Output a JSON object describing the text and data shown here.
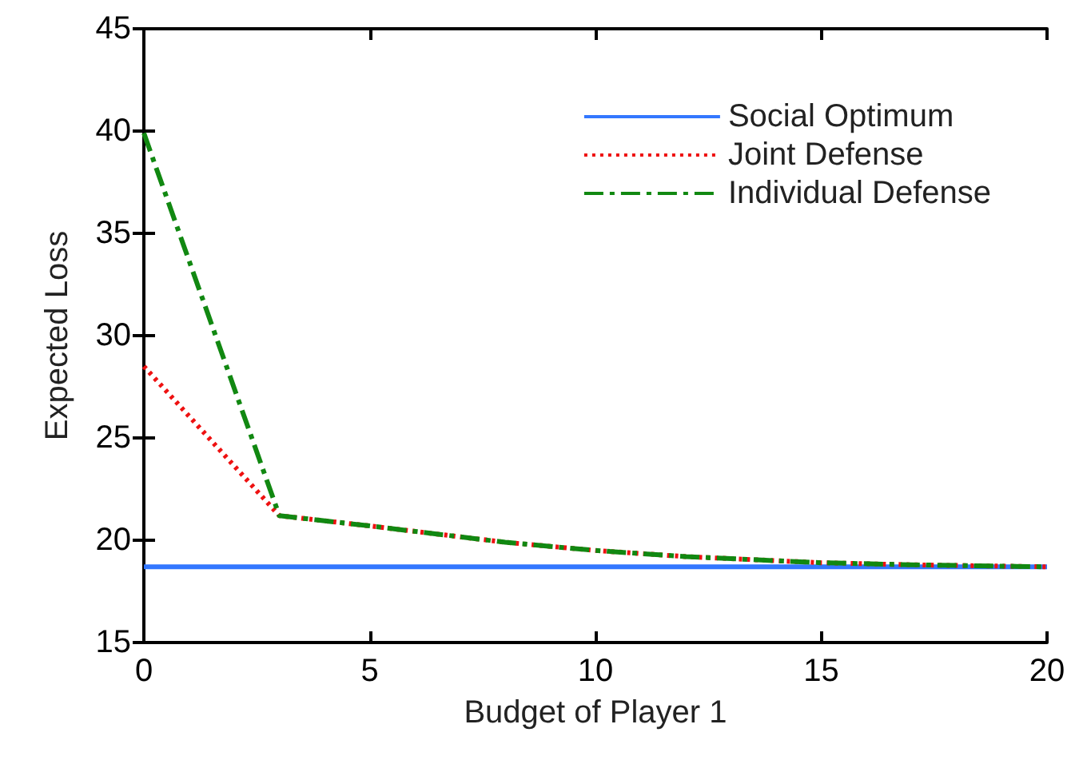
{
  "chart_data": {
    "type": "line",
    "xlabel": "Budget of Player 1",
    "ylabel": "Expected Loss",
    "x": [
      0,
      3,
      5,
      8,
      10,
      12,
      15,
      17,
      20
    ],
    "series": [
      {
        "name": "Social Optimum",
        "color": "#3377ff",
        "line_style": "solid",
        "values": [
          18.7,
          18.7,
          18.7,
          18.7,
          18.7,
          18.7,
          18.7,
          18.7,
          18.7
        ]
      },
      {
        "name": "Joint Defense",
        "color": "#ee1111",
        "line_style": "dotted",
        "values": [
          28.5,
          21.2,
          20.7,
          19.9,
          19.5,
          19.2,
          18.9,
          18.8,
          18.7
        ]
      },
      {
        "name": "Individual Defense",
        "color": "#118811",
        "line_style": "dashed",
        "values": [
          39.9,
          21.2,
          20.7,
          19.9,
          19.5,
          19.2,
          18.9,
          18.8,
          18.7
        ]
      }
    ],
    "xlim": [
      0,
      20
    ],
    "xticks": [
      0,
      5,
      10,
      15,
      20
    ],
    "ylim": [
      15,
      45
    ],
    "yticks": [
      15,
      20,
      25,
      30,
      35,
      40,
      45
    ],
    "grid": false,
    "legend": "top right",
    "marker": "none"
  }
}
